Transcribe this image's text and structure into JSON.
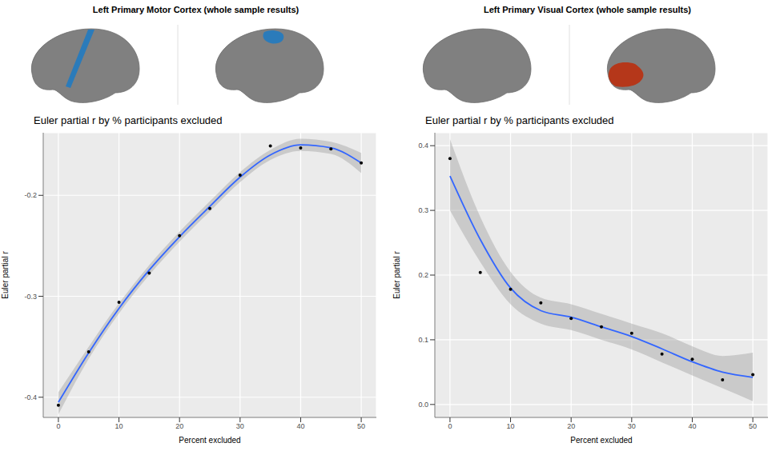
{
  "chart_data": [
    {
      "type": "line",
      "title": "Left Primary Motor Cortex (whole sample results)",
      "subtitle": "Euler partial r by % participants excluded",
      "x_label": "Percent excluded",
      "y_label": "Euler partial r",
      "color": "#2b7bba",
      "grid": true,
      "x": [
        0,
        5,
        10,
        15,
        20,
        25,
        30,
        35,
        40,
        45,
        50
      ],
      "xlim": [
        -2.5,
        52.5
      ],
      "xticks": [
        0,
        10,
        20,
        30,
        40,
        50
      ],
      "ylim": [
        -0.42,
        -0.138
      ],
      "yticks": [
        -0.4,
        -0.3,
        -0.2
      ],
      "series": [
        {
          "type": "band",
          "color": "#999999",
          "lower": [
            -0.417,
            -0.362,
            -0.317,
            -0.279,
            -0.246,
            -0.216,
            -0.187,
            -0.165,
            -0.156,
            -0.159,
            -0.178
          ],
          "upper": [
            -0.395,
            -0.35,
            -0.307,
            -0.269,
            -0.236,
            -0.206,
            -0.177,
            -0.155,
            -0.144,
            -0.147,
            -0.158
          ]
        },
        {
          "type": "line",
          "color": "#3366ff",
          "values": [
            -0.405,
            -0.356,
            -0.312,
            -0.274,
            -0.241,
            -0.211,
            -0.182,
            -0.16,
            -0.15,
            -0.153,
            -0.168
          ]
        },
        {
          "type": "scatter",
          "color": "#000000",
          "values": [
            -0.408,
            -0.355,
            -0.306,
            -0.277,
            -0.24,
            -0.213,
            -0.18,
            -0.151,
            -0.153,
            -0.154,
            -0.168
          ]
        }
      ]
    },
    {
      "type": "line",
      "title": "Left Primary Visual Cortex (whole sample results)",
      "subtitle": "Euler partial r by % participants excluded",
      "x_label": "Percent excluded",
      "y_label": "Euler partial r",
      "color": "#b5371a",
      "grid": true,
      "x": [
        0,
        5,
        10,
        15,
        20,
        25,
        30,
        35,
        40,
        45,
        50
      ],
      "xlim": [
        -2.5,
        52.5
      ],
      "xticks": [
        0,
        10,
        20,
        30,
        40,
        50
      ],
      "ylim": [
        -0.02,
        0.42
      ],
      "yticks": [
        {
          "value": 0,
          "label": "0.0"
        },
        {
          "value": 0.1,
          "label": "0.1"
        },
        {
          "value": 0.2,
          "label": "0.2"
        },
        {
          "value": 0.3,
          "label": "0.3"
        },
        {
          "value": 0.4,
          "label": "0.4"
        }
      ],
      "series": [
        {
          "type": "band",
          "color": "#999999",
          "lower": [
            0.3,
            0.22,
            0.155,
            0.125,
            0.115,
            0.1,
            0.085,
            0.065,
            0.045,
            0.025,
            0.005
          ],
          "upper": [
            0.41,
            0.29,
            0.205,
            0.165,
            0.155,
            0.14,
            0.125,
            0.11,
            0.09,
            0.075,
            0.08
          ]
        },
        {
          "type": "line",
          "color": "#3366ff",
          "values": [
            0.353,
            0.255,
            0.18,
            0.145,
            0.135,
            0.12,
            0.105,
            0.086,
            0.066,
            0.05,
            0.042
          ]
        },
        {
          "type": "scatter",
          "color": "#000000",
          "values": [
            0.38,
            0.204,
            0.178,
            0.157,
            0.133,
            0.12,
            0.11,
            0.078,
            0.07,
            0.038,
            0.046
          ]
        }
      ]
    }
  ]
}
